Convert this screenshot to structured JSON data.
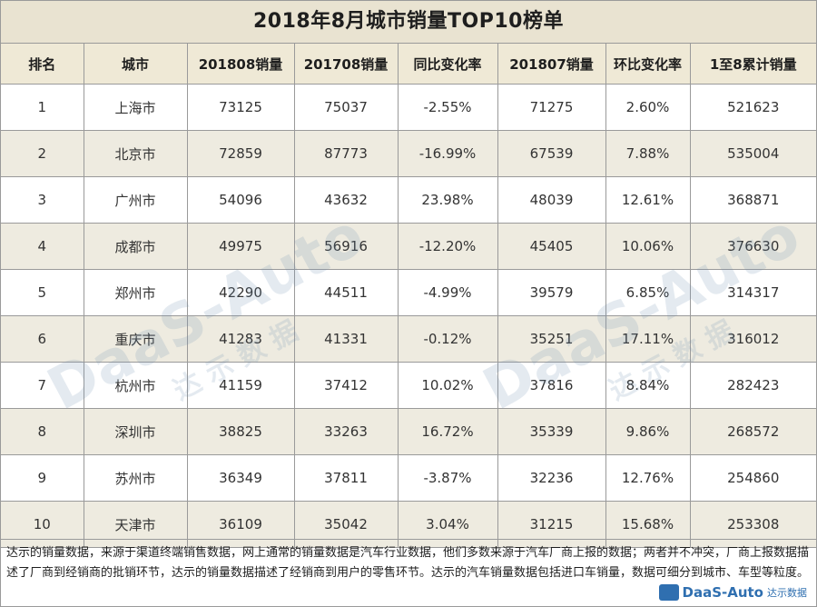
{
  "title": "2018年8月城市销量TOP10榜单",
  "columns": [
    "排名",
    "城市",
    "201808销量",
    "201708销量",
    "同比变化率",
    "201807销量",
    "环比变化率",
    "1至8累计销量"
  ],
  "rows": [
    [
      "1",
      "上海市",
      "73125",
      "75037",
      "-2.55%",
      "71275",
      "2.60%",
      "521623"
    ],
    [
      "2",
      "北京市",
      "72859",
      "87773",
      "-16.99%",
      "67539",
      "7.88%",
      "535004"
    ],
    [
      "3",
      "广州市",
      "54096",
      "43632",
      "23.98%",
      "48039",
      "12.61%",
      "368871"
    ],
    [
      "4",
      "成都市",
      "49975",
      "56916",
      "-12.20%",
      "45405",
      "10.06%",
      "376630"
    ],
    [
      "5",
      "郑州市",
      "42290",
      "44511",
      "-4.99%",
      "39579",
      "6.85%",
      "314317"
    ],
    [
      "6",
      "重庆市",
      "41283",
      "41331",
      "-0.12%",
      "35251",
      "17.11%",
      "316012"
    ],
    [
      "7",
      "杭州市",
      "41159",
      "37412",
      "10.02%",
      "37816",
      "8.84%",
      "282423"
    ],
    [
      "8",
      "深圳市",
      "38825",
      "33263",
      "16.72%",
      "35339",
      "9.86%",
      "268572"
    ],
    [
      "9",
      "苏州市",
      "36349",
      "37811",
      "-3.87%",
      "32236",
      "12.76%",
      "254860"
    ],
    [
      "10",
      "天津市",
      "36109",
      "35042",
      "3.04%",
      "31215",
      "15.68%",
      "253308"
    ]
  ],
  "footnote": "达示的销量数据，来源于渠道终端销售数据，网上通常的销量数据是汽车行业数据，他们多数来源于汽车厂商上报的数据；两者并不冲突，厂商上报数据描述了厂商到经销商的批销环节，达示的销量数据描述了经销商到用户的零售环节。达示的汽车销量数据包括进口车销量，数据可细分到城市、车型等粒度。",
  "watermark": {
    "brand": "DaaS-Auto",
    "sub": "达示数据"
  },
  "brand_logo": {
    "name": "DaaS-Auto",
    "sub": "达示数据",
    "color": "#2f6fb0"
  },
  "colors": {
    "header_bg": "#efe9d6",
    "title_bg": "#e9e3d1",
    "alt_row_bg": "#eeebe0",
    "grid": "#9a9a9a"
  }
}
